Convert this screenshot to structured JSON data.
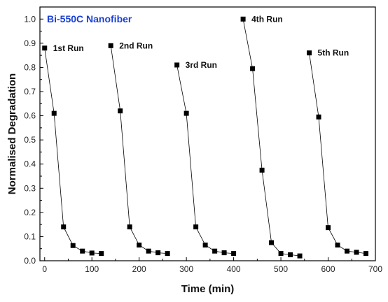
{
  "chart_data": {
    "type": "line",
    "title": "Bi-550C Nanofiber",
    "xlabel": "Time (min)",
    "ylabel": "Normalised Degradation",
    "xlim": [
      -10,
      700
    ],
    "ylim": [
      0,
      1.05
    ],
    "x_ticks": [
      0,
      100,
      200,
      300,
      400,
      500,
      600,
      700
    ],
    "y_ticks": [
      0.0,
      0.1,
      0.2,
      0.3,
      0.4,
      0.5,
      0.6,
      0.7,
      0.8,
      0.9,
      1.0
    ],
    "x_tick_labels": [
      "0",
      "100",
      "200",
      "300",
      "400",
      "500",
      "600",
      "700"
    ],
    "y_tick_labels": [
      "0.0",
      "0.1",
      "0.2",
      "0.3",
      "0.4",
      "0.5",
      "0.6",
      "0.7",
      "0.8",
      "0.9",
      "1.0"
    ],
    "marker": "square",
    "series_color": "#000000",
    "title_color": "#1a3fd6",
    "series": [
      {
        "name": "1st Run",
        "x": [
          0,
          20,
          40,
          60,
          80,
          100,
          120
        ],
        "y": [
          0.88,
          0.61,
          0.14,
          0.063,
          0.04,
          0.032,
          0.03
        ]
      },
      {
        "name": "2nd Run",
        "x": [
          140,
          160,
          180,
          200,
          220,
          240,
          260
        ],
        "y": [
          0.89,
          0.62,
          0.14,
          0.065,
          0.04,
          0.033,
          0.03
        ]
      },
      {
        "name": "3rd Run",
        "x": [
          280,
          300,
          320,
          340,
          360,
          380,
          400
        ],
        "y": [
          0.81,
          0.61,
          0.14,
          0.065,
          0.04,
          0.033,
          0.03
        ]
      },
      {
        "name": "4th Run",
        "x": [
          420,
          440,
          460,
          480,
          500,
          520,
          540
        ],
        "y": [
          1.0,
          0.795,
          0.375,
          0.075,
          0.03,
          0.025,
          0.02
        ]
      },
      {
        "name": "5th Run",
        "x": [
          560,
          580,
          600,
          620,
          640,
          660,
          680
        ],
        "y": [
          0.86,
          0.595,
          0.137,
          0.065,
          0.04,
          0.035,
          0.03
        ]
      }
    ]
  }
}
